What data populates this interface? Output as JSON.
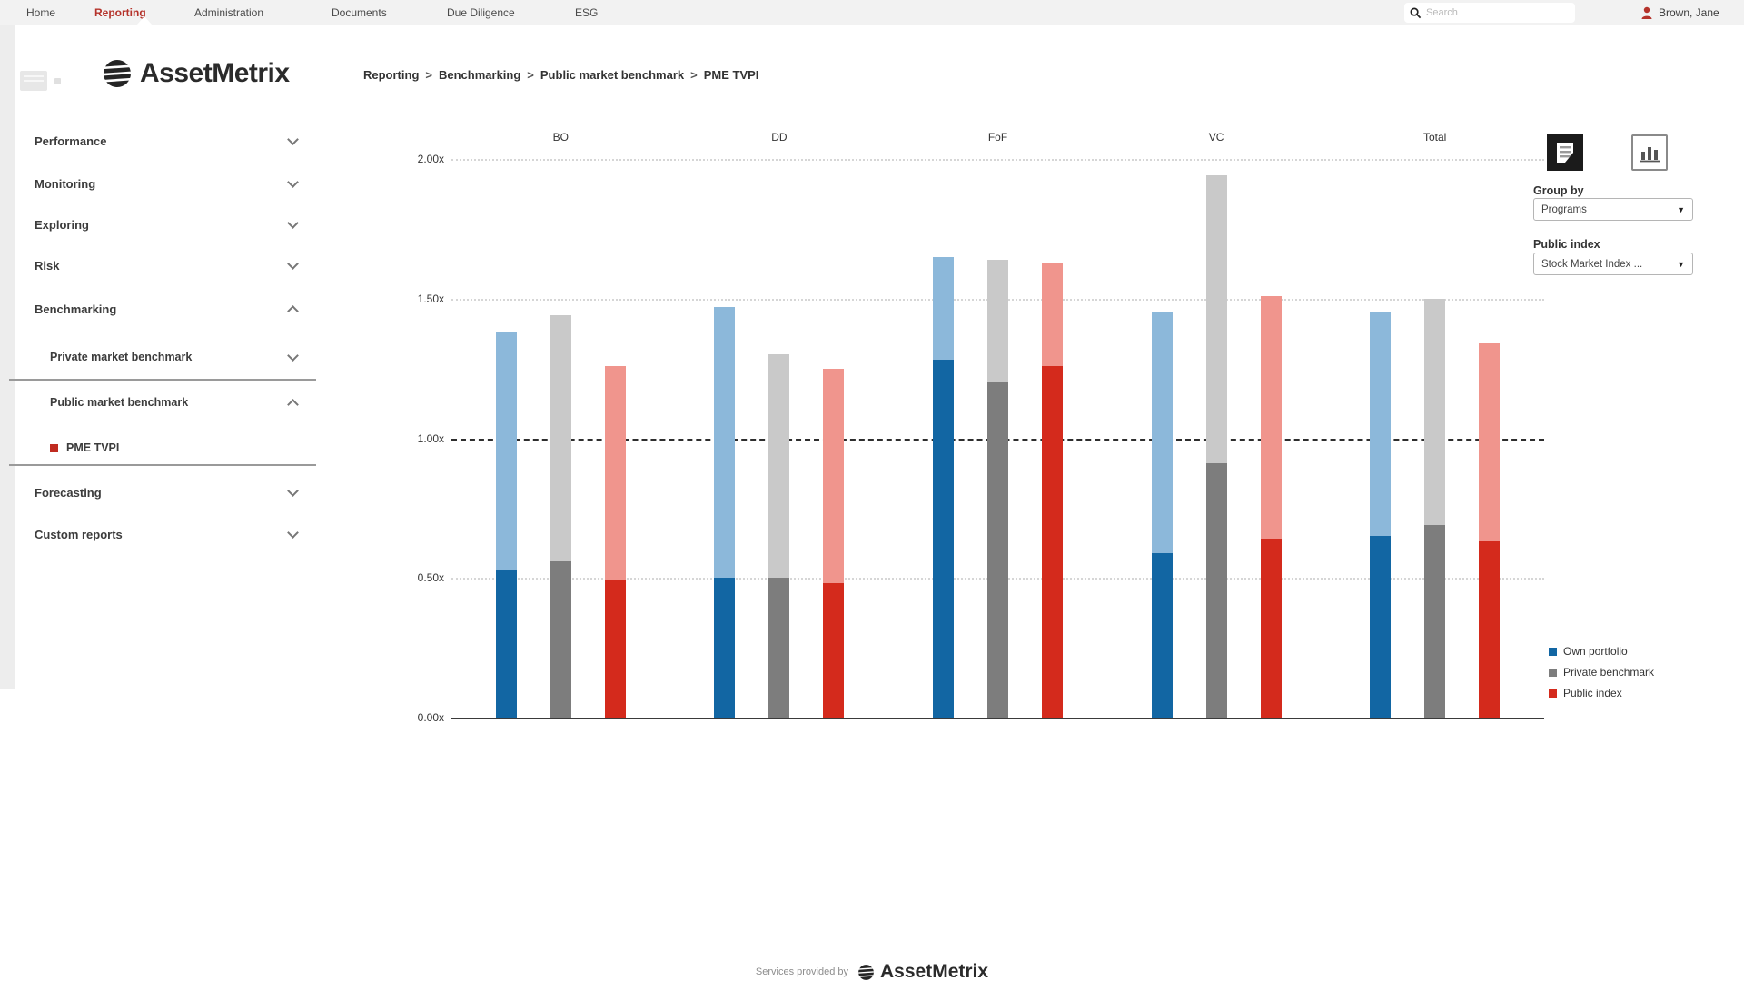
{
  "topnav": {
    "items": [
      {
        "label": "Home",
        "active": false
      },
      {
        "label": "Reporting",
        "active": true
      },
      {
        "label": "Administration",
        "active": false
      },
      {
        "label": "Documents",
        "active": false
      },
      {
        "label": "Due Diligence",
        "active": false
      },
      {
        "label": "ESG",
        "active": false
      }
    ],
    "search_placeholder": "Search",
    "user_name": "Brown, Jane"
  },
  "brand": {
    "name": "AssetMetrix"
  },
  "breadcrumb": {
    "separator": ">",
    "parts": [
      "Reporting",
      "Benchmarking",
      "Public market benchmark",
      "PME TVPI"
    ]
  },
  "sidebar": {
    "items": [
      {
        "label": "Performance",
        "level": 0,
        "chevron": "down"
      },
      {
        "label": "Monitoring",
        "level": 0,
        "chevron": "down"
      },
      {
        "label": "Exploring",
        "level": 0,
        "chevron": "down"
      },
      {
        "label": "Risk",
        "level": 0,
        "chevron": "down"
      },
      {
        "label": "Benchmarking",
        "level": 0,
        "chevron": "up"
      },
      {
        "label": "Private market benchmark",
        "level": 1,
        "chevron": "down"
      },
      {
        "label": "Public market benchmark",
        "level": 1,
        "chevron": "up"
      },
      {
        "label": "PME TVPI",
        "level": 2,
        "chevron": "none",
        "active": true
      },
      {
        "label": "Forecasting",
        "level": 0,
        "chevron": "down"
      },
      {
        "label": "Custom reports",
        "level": 0,
        "chevron": "down"
      }
    ]
  },
  "controls": {
    "group_by_label": "Group by",
    "group_by_value": "Programs",
    "public_index_label": "Public index",
    "public_index_value": "Stock Market Index ..."
  },
  "chart_data": {
    "type": "bar",
    "title": "PME TVPI",
    "categories": [
      "BO",
      "DD",
      "FoF",
      "VC",
      "Total"
    ],
    "series": [
      {
        "name": "Own portfolio",
        "color_dark": "#1266a3",
        "color_light": "#8cb8da",
        "totals": [
          1.38,
          1.47,
          1.65,
          1.45,
          1.45
        ],
        "dark_segment": [
          0.53,
          0.5,
          1.28,
          0.59,
          0.65
        ]
      },
      {
        "name": "Private benchmark",
        "color_dark": "#7d7d7d",
        "color_light": "#c9c9c9",
        "totals": [
          1.44,
          1.3,
          1.64,
          1.94,
          1.5
        ],
        "dark_segment": [
          0.56,
          0.5,
          1.2,
          0.91,
          0.69
        ]
      },
      {
        "name": "Public index",
        "color_dark": "#d42a1c",
        "color_light": "#f0958d",
        "totals": [
          1.26,
          1.25,
          1.63,
          1.51,
          1.34
        ],
        "dark_segment": [
          0.49,
          0.48,
          1.26,
          0.64,
          0.63
        ]
      }
    ],
    "yticks": [
      {
        "label": "0.00x",
        "value": 0.0,
        "style": "axis"
      },
      {
        "label": "0.50x",
        "value": 0.5,
        "style": "dotted"
      },
      {
        "label": "1.00x",
        "value": 1.0,
        "style": "dashed"
      },
      {
        "label": "1.50x",
        "value": 1.5,
        "style": "dotted"
      },
      {
        "label": "2.00x",
        "value": 2.0,
        "style": "dotted"
      }
    ],
    "ylim": [
      0,
      2.0
    ],
    "reference_line": 1.0,
    "grid": "horizontal-dotted",
    "legend_position": "bottom-right",
    "xlabel": "",
    "ylabel": ""
  },
  "footer": {
    "prefix": "Services provided by",
    "brand": "AssetMetrix"
  }
}
